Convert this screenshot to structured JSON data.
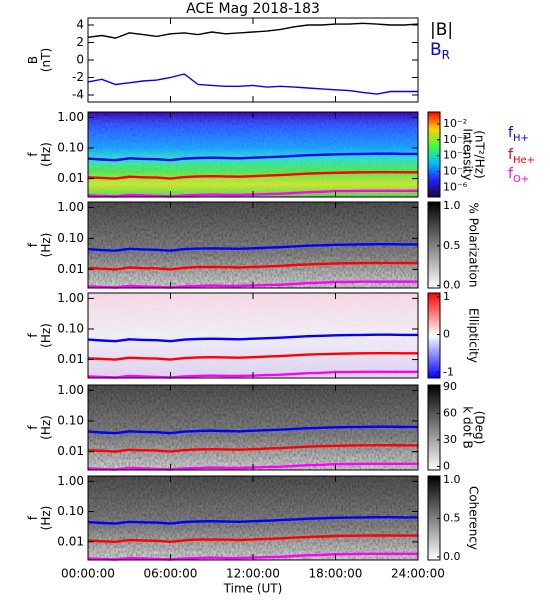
{
  "chart_data": [
    {
      "type": "line",
      "title": "ACE Mag 2018-183",
      "ylabel": [
        "B",
        "(nT)"
      ],
      "ylim": [
        -4.8,
        4.8
      ],
      "yticks": [
        4,
        2,
        0,
        -2,
        -4
      ],
      "x": [
        0,
        1,
        2,
        3,
        4,
        5,
        6,
        7,
        8,
        9,
        10,
        11,
        12,
        13,
        14,
        15,
        16,
        17,
        18,
        19,
        20,
        21,
        22,
        23,
        24
      ],
      "series": [
        {
          "name": "|B|",
          "color": "#000000",
          "values": [
            2.6,
            2.8,
            2.5,
            3.1,
            2.9,
            2.7,
            3.0,
            3.1,
            2.9,
            3.2,
            3.0,
            3.1,
            3.2,
            3.3,
            3.5,
            3.8,
            4.0,
            4.0,
            4.1,
            4.1,
            4.2,
            4.1,
            4.0,
            4.0,
            4.1
          ]
        },
        {
          "name": "B",
          "name_sub": "R",
          "color": "#0000ff",
          "values": [
            -2.5,
            -2.2,
            -2.8,
            -2.6,
            -2.4,
            -2.3,
            -2.0,
            -1.6,
            -2.8,
            -2.9,
            -3.0,
            -3.0,
            -2.9,
            -3.1,
            -3.0,
            -3.1,
            -3.2,
            -3.3,
            -3.4,
            -3.5,
            -3.7,
            -3.9,
            -3.6,
            -3.6,
            -3.6
          ]
        }
      ]
    },
    {
      "type": "spectrogram",
      "ylabel": [
        "f",
        "(Hz)"
      ],
      "log_y": true,
      "ylim": [
        0.0025,
        1.5
      ],
      "yticks": [
        {
          "value": 1,
          "label": "1.00"
        },
        {
          "value": 0.1,
          "label": "0.10"
        },
        {
          "value": 0.01,
          "label": "0.01"
        }
      ],
      "colorbar": {
        "label": [
          "Intensity",
          "(nT²/Hz)"
        ],
        "colormap": "rainbow",
        "log": true,
        "lim": [
          2.5e-07,
          0.056
        ],
        "ticks": [
          {
            "value": 0.01,
            "label": "10⁻²"
          },
          {
            "value": 0.001,
            "label": "10⁻³"
          },
          {
            "value": 0.0001,
            "label": "10⁻⁴"
          },
          {
            "value": 1e-05,
            "label": "10⁻⁵"
          },
          {
            "value": 1e-06,
            "label": "10⁻⁶"
          }
        ]
      },
      "x": [
        0,
        1,
        2,
        3,
        4,
        5,
        6,
        7,
        8,
        9,
        10,
        11,
        12,
        13,
        14,
        15,
        16,
        17,
        18,
        19,
        20,
        21,
        22,
        23,
        24
      ],
      "series": [
        {
          "name": "f",
          "name_sub": "H+",
          "color": "#0000ff",
          "values": [
            0.045,
            0.042,
            0.04,
            0.046,
            0.044,
            0.043,
            0.04,
            0.045,
            0.047,
            0.048,
            0.047,
            0.046,
            0.048,
            0.05,
            0.052,
            0.055,
            0.058,
            0.06,
            0.062,
            0.063,
            0.064,
            0.065,
            0.065,
            0.064,
            0.064
          ]
        },
        {
          "name": "f",
          "name_sub": "He+",
          "color": "#ff0000",
          "values": [
            0.011,
            0.0105,
            0.01,
            0.0115,
            0.011,
            0.0108,
            0.01,
            0.0112,
            0.0118,
            0.012,
            0.0118,
            0.0115,
            0.012,
            0.0125,
            0.013,
            0.0138,
            0.0145,
            0.015,
            0.0155,
            0.0158,
            0.016,
            0.0162,
            0.0162,
            0.016,
            0.016
          ]
        },
        {
          "name": "f",
          "name_sub": "O+",
          "color": "#ff00ff",
          "values": [
            0.0028,
            0.0027,
            0.0026,
            0.0029,
            0.0028,
            0.0027,
            0.0026,
            0.0028,
            0.0029,
            0.003,
            0.0029,
            0.0029,
            0.003,
            0.0031,
            0.0032,
            0.0034,
            0.0036,
            0.0037,
            0.0039,
            0.0039,
            0.004,
            0.004,
            0.004,
            0.004,
            0.004
          ]
        }
      ]
    },
    {
      "type": "spectrogram",
      "ylabel": [
        "f",
        "(Hz)"
      ],
      "log_y": true,
      "ylim": [
        0.0025,
        1.5
      ],
      "yticks": [
        {
          "value": 1,
          "label": "1.00"
        },
        {
          "value": 0.1,
          "label": "0.10"
        },
        {
          "value": 0.01,
          "label": "0.01"
        }
      ],
      "colorbar": {
        "label": [
          "% Polarization"
        ],
        "colormap": "gray",
        "log": false,
        "lim": [
          -0.03,
          1.05
        ],
        "ticks": [
          {
            "value": 1,
            "label": "1.0"
          },
          {
            "value": 0.5,
            "label": "0.5"
          },
          {
            "value": 0,
            "label": "0.0"
          }
        ]
      },
      "x": [
        0,
        1,
        2,
        3,
        4,
        5,
        6,
        7,
        8,
        9,
        10,
        11,
        12,
        13,
        14,
        15,
        16,
        17,
        18,
        19,
        20,
        21,
        22,
        23,
        24
      ],
      "series": [
        {
          "color": "#0000ff",
          "values": [
            0.045,
            0.042,
            0.04,
            0.046,
            0.044,
            0.043,
            0.04,
            0.045,
            0.047,
            0.048,
            0.047,
            0.046,
            0.048,
            0.05,
            0.052,
            0.055,
            0.058,
            0.06,
            0.062,
            0.063,
            0.064,
            0.065,
            0.065,
            0.064,
            0.064
          ]
        },
        {
          "color": "#ff0000",
          "values": [
            0.011,
            0.0105,
            0.01,
            0.0115,
            0.011,
            0.0108,
            0.01,
            0.0112,
            0.0118,
            0.012,
            0.0118,
            0.0115,
            0.012,
            0.0125,
            0.013,
            0.0138,
            0.0145,
            0.015,
            0.0155,
            0.0158,
            0.016,
            0.0162,
            0.0162,
            0.016,
            0.016
          ]
        },
        {
          "color": "#ff00ff",
          "values": [
            0.0028,
            0.0027,
            0.0026,
            0.0029,
            0.0028,
            0.0027,
            0.0026,
            0.0028,
            0.0029,
            0.003,
            0.0029,
            0.0029,
            0.003,
            0.0031,
            0.0032,
            0.0034,
            0.0036,
            0.0037,
            0.0039,
            0.0039,
            0.004,
            0.004,
            0.004,
            0.004,
            0.004
          ]
        }
      ]
    },
    {
      "type": "spectrogram",
      "ylabel": [
        "f",
        "(Hz)"
      ],
      "log_y": true,
      "ylim": [
        0.0025,
        1.5
      ],
      "yticks": [
        {
          "value": 1,
          "label": "1.00"
        },
        {
          "value": 0.1,
          "label": "0.10"
        },
        {
          "value": 0.01,
          "label": "0.01"
        }
      ],
      "colorbar": {
        "label": [
          "Ellipticity"
        ],
        "colormap": "bwr",
        "log": false,
        "lim": [
          -1.15,
          1.1
        ],
        "ticks": [
          1,
          0,
          -1
        ]
      },
      "x": [
        0,
        1,
        2,
        3,
        4,
        5,
        6,
        7,
        8,
        9,
        10,
        11,
        12,
        13,
        14,
        15,
        16,
        17,
        18,
        19,
        20,
        21,
        22,
        23,
        24
      ],
      "series": [
        {
          "color": "#0000ff",
          "values": [
            0.045,
            0.042,
            0.04,
            0.046,
            0.044,
            0.043,
            0.04,
            0.045,
            0.047,
            0.048,
            0.047,
            0.046,
            0.048,
            0.05,
            0.052,
            0.055,
            0.058,
            0.06,
            0.062,
            0.063,
            0.064,
            0.065,
            0.065,
            0.064,
            0.064
          ]
        },
        {
          "color": "#ff0000",
          "values": [
            0.011,
            0.0105,
            0.01,
            0.0115,
            0.011,
            0.0108,
            0.01,
            0.0112,
            0.0118,
            0.012,
            0.0118,
            0.0115,
            0.012,
            0.0125,
            0.013,
            0.0138,
            0.0145,
            0.015,
            0.0155,
            0.0158,
            0.016,
            0.0162,
            0.0162,
            0.016,
            0.016
          ]
        },
        {
          "color": "#ff00ff",
          "values": [
            0.0028,
            0.0027,
            0.0026,
            0.0029,
            0.0028,
            0.0027,
            0.0026,
            0.0028,
            0.0029,
            0.003,
            0.0029,
            0.0029,
            0.003,
            0.0031,
            0.0032,
            0.0034,
            0.0036,
            0.0037,
            0.0039,
            0.0039,
            0.004,
            0.004,
            0.004,
            0.004,
            0.004
          ]
        }
      ]
    },
    {
      "type": "spectrogram",
      "ylabel": [
        "f",
        "(Hz)"
      ],
      "log_y": true,
      "ylim": [
        0.0025,
        1.5
      ],
      "yticks": [
        {
          "value": 1,
          "label": "1.00"
        },
        {
          "value": 0.1,
          "label": "0.10"
        },
        {
          "value": 0.01,
          "label": "0.01"
        }
      ],
      "colorbar": {
        "label": [
          "k dot B",
          "(Deg)"
        ],
        "colormap": "gray",
        "log": false,
        "lim": [
          -4,
          92
        ],
        "ticks": [
          90,
          60,
          30,
          0
        ]
      },
      "x": [
        0,
        1,
        2,
        3,
        4,
        5,
        6,
        7,
        8,
        9,
        10,
        11,
        12,
        13,
        14,
        15,
        16,
        17,
        18,
        19,
        20,
        21,
        22,
        23,
        24
      ],
      "series": [
        {
          "color": "#0000ff",
          "values": [
            0.045,
            0.042,
            0.04,
            0.046,
            0.044,
            0.043,
            0.04,
            0.045,
            0.047,
            0.048,
            0.047,
            0.046,
            0.048,
            0.05,
            0.052,
            0.055,
            0.058,
            0.06,
            0.062,
            0.063,
            0.064,
            0.065,
            0.065,
            0.064,
            0.064
          ]
        },
        {
          "color": "#ff0000",
          "values": [
            0.011,
            0.0105,
            0.01,
            0.0115,
            0.011,
            0.0108,
            0.01,
            0.0112,
            0.0118,
            0.012,
            0.0118,
            0.0115,
            0.012,
            0.0125,
            0.013,
            0.0138,
            0.0145,
            0.015,
            0.0155,
            0.0158,
            0.016,
            0.0162,
            0.0162,
            0.016,
            0.016
          ]
        },
        {
          "color": "#ff00ff",
          "values": [
            0.0028,
            0.0027,
            0.0026,
            0.0029,
            0.0028,
            0.0027,
            0.0026,
            0.0028,
            0.0029,
            0.003,
            0.0029,
            0.0029,
            0.003,
            0.0031,
            0.0032,
            0.0034,
            0.0036,
            0.0037,
            0.0039,
            0.0039,
            0.004,
            0.004,
            0.004,
            0.004,
            0.004
          ]
        }
      ]
    },
    {
      "type": "spectrogram",
      "ylabel": [
        "f",
        "(Hz)"
      ],
      "log_y": true,
      "ylim": [
        0.0025,
        1.5
      ],
      "yticks": [
        {
          "value": 1,
          "label": "1.00"
        },
        {
          "value": 0.1,
          "label": "0.10"
        },
        {
          "value": 0.01,
          "label": "0.01"
        }
      ],
      "colorbar": {
        "label": [
          "Coherency"
        ],
        "colormap": "gray",
        "log": false,
        "lim": [
          -0.04,
          1.05
        ],
        "ticks": [
          {
            "value": 1,
            "label": "1.0"
          },
          {
            "value": 0.5,
            "label": "0.5"
          },
          {
            "value": 0,
            "label": "0.0"
          }
        ]
      },
      "x": [
        0,
        1,
        2,
        3,
        4,
        5,
        6,
        7,
        8,
        9,
        10,
        11,
        12,
        13,
        14,
        15,
        16,
        17,
        18,
        19,
        20,
        21,
        22,
        23,
        24
      ],
      "series": [
        {
          "color": "#0000ff",
          "values": [
            0.045,
            0.042,
            0.04,
            0.046,
            0.044,
            0.043,
            0.04,
            0.045,
            0.047,
            0.048,
            0.047,
            0.046,
            0.048,
            0.05,
            0.052,
            0.055,
            0.058,
            0.06,
            0.062,
            0.063,
            0.064,
            0.065,
            0.065,
            0.064,
            0.064
          ]
        },
        {
          "color": "#ff0000",
          "values": [
            0.011,
            0.0105,
            0.01,
            0.0115,
            0.011,
            0.0108,
            0.01,
            0.0112,
            0.0118,
            0.012,
            0.0118,
            0.0115,
            0.012,
            0.0125,
            0.013,
            0.0138,
            0.0145,
            0.015,
            0.0155,
            0.0158,
            0.016,
            0.0162,
            0.0162,
            0.016,
            0.016
          ]
        },
        {
          "color": "#ff00ff",
          "values": [
            0.0028,
            0.0027,
            0.0026,
            0.0029,
            0.0028,
            0.0027,
            0.0026,
            0.0028,
            0.0029,
            0.003,
            0.0029,
            0.0029,
            0.003,
            0.0031,
            0.0032,
            0.0034,
            0.0036,
            0.0037,
            0.0039,
            0.0039,
            0.004,
            0.004,
            0.004,
            0.004,
            0.004
          ]
        }
      ],
      "xlabel": "Time (UT)",
      "xlim": [
        0,
        24
      ],
      "xticks": [
        {
          "value": 0,
          "label": "00:00:00"
        },
        {
          "value": 6,
          "label": "06:00:00"
        },
        {
          "value": 12,
          "label": "12:00:00"
        },
        {
          "value": 18,
          "label": "18:00:00"
        },
        {
          "value": 24,
          "label": "24:00:00"
        }
      ]
    }
  ]
}
